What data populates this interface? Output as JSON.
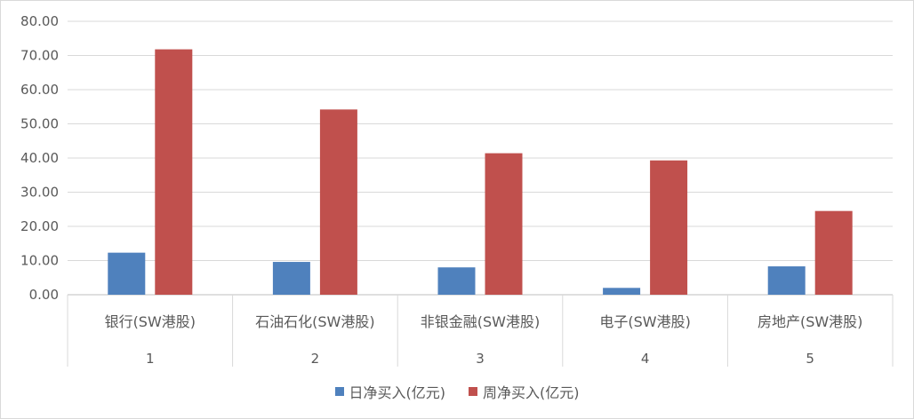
{
  "chart_data": {
    "type": "bar",
    "categories": [
      "银行(SW港股)",
      "石油石化(SW港股)",
      "非银金融(SW港股)",
      "电子(SW港股)",
      "房地产(SW港股)"
    ],
    "category_index_labels": [
      "1",
      "2",
      "3",
      "4",
      "5"
    ],
    "series": [
      {
        "name": "日净买入(亿元)",
        "color": "#4f81bd",
        "values": [
          12.3,
          9.6,
          8.0,
          2.0,
          8.3
        ]
      },
      {
        "name": "周净买入(亿元)",
        "color": "#c0504d",
        "values": [
          71.8,
          54.2,
          41.4,
          39.3,
          24.5
        ]
      }
    ],
    "ylim": [
      0,
      80
    ],
    "yticks": [
      "0.00",
      "10.00",
      "20.00",
      "30.00",
      "40.00",
      "50.00",
      "60.00",
      "70.00",
      "80.00"
    ],
    "grid": true,
    "legend": "bottom"
  }
}
